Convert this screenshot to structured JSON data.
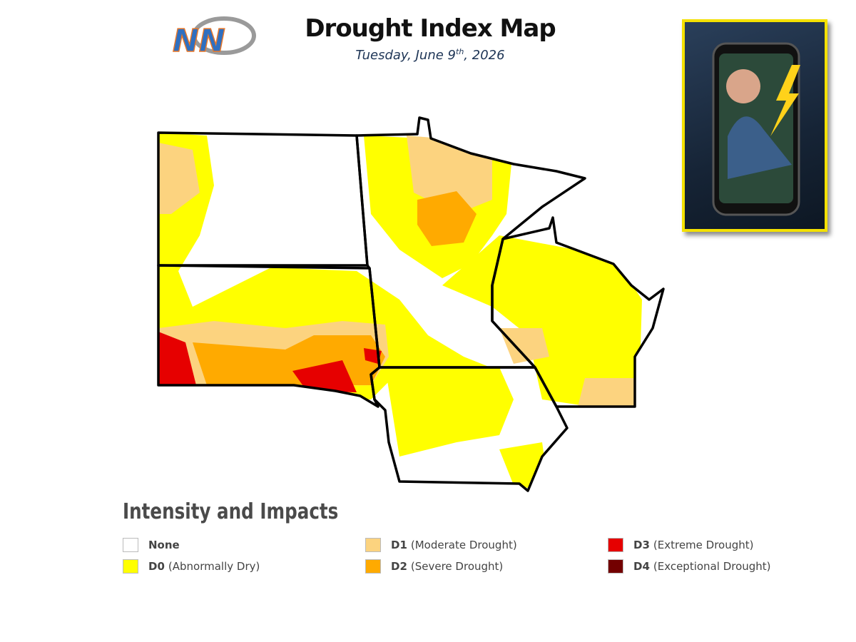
{
  "header": {
    "title": "Drought Index Map",
    "date": {
      "main": "Tuesday, June 9",
      "sup": "th",
      "year": ", 2026"
    },
    "logo": "NN"
  },
  "legend": {
    "title": "Intensity and Impacts",
    "items": [
      {
        "code": "None",
        "color": "#ffffff"
      },
      {
        "code": "D0",
        "label": "(Abnormally Dry)",
        "color": "#ffff00"
      },
      {
        "code": "D1",
        "label": "(Moderate Drought)",
        "color": "#fcd37f"
      },
      {
        "code": "D2",
        "label": "(Severe Drought)",
        "color": "#ffaa00"
      },
      {
        "code": "D3",
        "label": "(Extreme Drought)",
        "color": "#e60000"
      },
      {
        "code": "D4",
        "label": "(Exceptional Drought)",
        "color": "#730000"
      }
    ]
  }
}
